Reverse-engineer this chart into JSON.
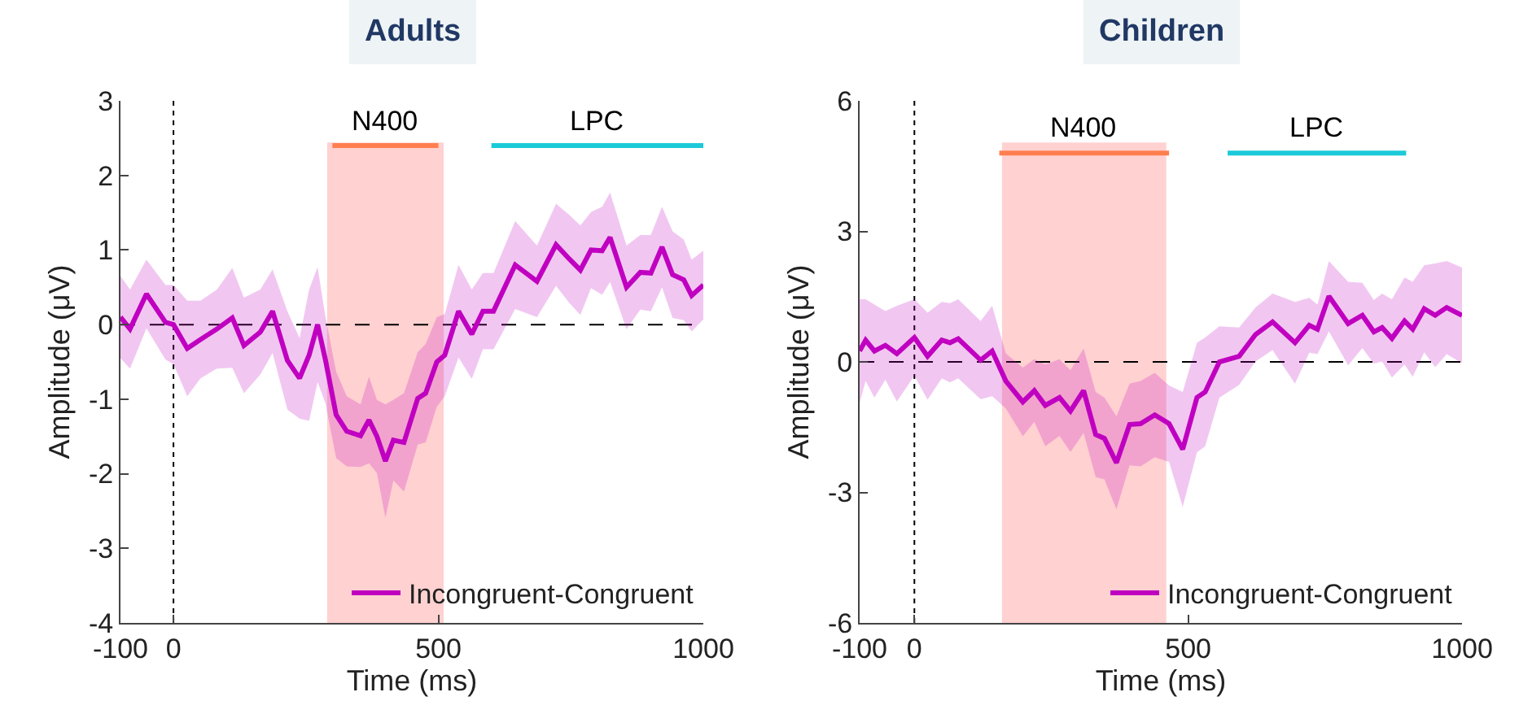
{
  "chart_data": [
    {
      "type": "line",
      "title": "Adults",
      "xlabel": "Time (ms)",
      "ylabel": "Amplitude (μV)",
      "xlim": [
        -100,
        1000
      ],
      "xticks": [
        -100,
        0,
        500,
        1000
      ],
      "ylim": [
        -4,
        3
      ],
      "yticks": [
        -4,
        -3,
        -2,
        -1,
        0,
        1,
        2,
        3
      ],
      "grid": false,
      "legend": "bottom right",
      "line_style": "solid",
      "marker": "none",
      "series": [
        {
          "name": "Incongruent-Congruent",
          "color": "#c000c0",
          "x": [
            -100,
            -82,
            -51,
            -15,
            0,
            26,
            51,
            82,
            111,
            133,
            164,
            187,
            215,
            238,
            256,
            272,
            287,
            307,
            327,
            353,
            369,
            384,
            400,
            415,
            435,
            461,
            476,
            497,
            512,
            538,
            563,
            584,
            604,
            645,
            686,
            722,
            747,
            768,
            788,
            809,
            824,
            855,
            881,
            901,
            922,
            942,
            963,
            978,
            1000
          ],
          "values": [
            0.1,
            -0.06,
            0.41,
            0.03,
            0,
            -0.32,
            -0.2,
            -0.06,
            0.09,
            -0.28,
            -0.1,
            0.18,
            -0.48,
            -0.72,
            -0.41,
            0,
            -0.48,
            -1.21,
            -1.43,
            -1.49,
            -1.28,
            -1.5,
            -1.83,
            -1.55,
            -1.58,
            -0.99,
            -0.92,
            -0.5,
            -0.41,
            0.18,
            -0.13,
            0.18,
            0.18,
            0.8,
            0.58,
            1.07,
            0.88,
            0.73,
            1,
            0.99,
            1.17,
            0.5,
            0.7,
            0.69,
            1.04,
            0.67,
            0.6,
            0.39,
            0.53
          ],
          "upper": [
            0.65,
            0.47,
            0.87,
            0.53,
            0.53,
            0.32,
            0.32,
            0.47,
            0.76,
            0.36,
            0.47,
            0.74,
            0.18,
            -0.18,
            0.47,
            0.77,
            0.1,
            -0.63,
            -0.96,
            -1.07,
            -0.7,
            -1.01,
            -1.07,
            -1.01,
            -0.92,
            -0.37,
            -0.26,
            0.1,
            0.14,
            0.8,
            0.47,
            0.69,
            0.69,
            1.39,
            1.06,
            1.62,
            1.47,
            1.33,
            1.51,
            1.58,
            1.77,
            1.06,
            1.2,
            1.2,
            1.58,
            1.25,
            1.14,
            0.87,
            0.99
          ],
          "lower": [
            -0.45,
            -0.59,
            -0.05,
            -0.47,
            -0.53,
            -0.96,
            -0.72,
            -0.59,
            -0.58,
            -0.92,
            -0.67,
            -0.38,
            -1.14,
            -1.26,
            -1.29,
            -0.77,
            -1.06,
            -1.79,
            -1.9,
            -1.91,
            -1.86,
            -1.99,
            -2.59,
            -2.09,
            -2.24,
            -1.61,
            -1.58,
            -1.1,
            -0.96,
            -0.44,
            -0.73,
            -0.33,
            -0.33,
            0.21,
            0.1,
            0.52,
            0.29,
            0.13,
            0.49,
            0.4,
            0.57,
            -0.06,
            0.2,
            0.18,
            0.5,
            0.09,
            0.06,
            -0.09,
            0.07
          ]
        },
        {
          "type": "line",
          "name": "N400",
          "color": "#ff7f50",
          "x": [
            300,
            500
          ],
          "values": [
            2.4,
            2.4
          ]
        },
        {
          "type": "line",
          "name": "LPC",
          "color": "#1ccad8",
          "x": [
            600,
            1000
          ],
          "values": [
            2.4,
            2.4
          ]
        }
      ],
      "bands": [
        {
          "axis": "x",
          "from": 290,
          "to": 510,
          "color": "#ffb3b3"
        }
      ],
      "ref_lines": [
        {
          "axis": "x",
          "value": 0,
          "line_style": "dotted",
          "color": "#000000"
        },
        {
          "axis": "y",
          "value": 0,
          "line_style": "dashed",
          "color": "#000000"
        }
      ]
    },
    {
      "type": "line",
      "title": "Children",
      "xlabel": "Time (ms)",
      "ylabel": "Amplitude (μV)",
      "xlim": [
        -100,
        1000
      ],
      "xticks": [
        -100,
        0,
        500,
        1000
      ],
      "ylim": [
        -6,
        6
      ],
      "yticks": [
        -6,
        -3,
        0,
        3,
        6
      ],
      "grid": false,
      "legend": "bottom right",
      "line_style": "solid",
      "marker": "none",
      "series": [
        {
          "name": "Incongruent-Congruent",
          "color": "#c000c0",
          "x": [
            -100,
            -89,
            -73,
            -53,
            -32,
            0,
            24,
            50,
            65,
            80,
            121,
            142,
            167,
            198,
            219,
            239,
            265,
            285,
            309,
            331,
            347,
            369,
            393,
            413,
            439,
            465,
            490,
            516,
            531,
            557,
            593,
            623,
            654,
            695,
            721,
            736,
            757,
            792,
            818,
            839,
            854,
            872,
            895,
            910,
            931,
            951,
            972,
            1000
          ],
          "values": [
            0.25,
            0.5,
            0.25,
            0.38,
            0.19,
            0.56,
            0.13,
            0.5,
            0.44,
            0.53,
            0.04,
            0.25,
            -0.44,
            -0.92,
            -0.66,
            -1,
            -0.82,
            -1.13,
            -0.66,
            -1.67,
            -1.76,
            -2.32,
            -1.44,
            -1.42,
            -1.22,
            -1.42,
            -2.01,
            -0.82,
            -0.69,
            0,
            0.13,
            0.63,
            0.92,
            0.44,
            0.84,
            0.75,
            1.51,
            0.88,
            1.07,
            0.69,
            0.79,
            0.54,
            0.94,
            0.75,
            1.22,
            1.07,
            1.25,
            1.07
          ],
          "upper": [
            1.44,
            1.44,
            1.32,
            1.17,
            1.29,
            1.44,
            1.13,
            1.38,
            1.35,
            1.44,
            0.94,
            1.29,
            0.19,
            -0.13,
            0.06,
            -0.06,
            0.06,
            -0.19,
            0.31,
            -0.69,
            -0.82,
            -1.25,
            -0.5,
            -0.44,
            -0.25,
            -0.54,
            -0.69,
            0.44,
            0.56,
            0.82,
            0.79,
            1.25,
            1.57,
            1.38,
            1.47,
            1.32,
            2.32,
            1.84,
            1.82,
            1.42,
            1.57,
            1.44,
            1.94,
            1.84,
            2.22,
            2.26,
            2.32,
            2.17
          ],
          "lower": [
            -0.94,
            -0.44,
            -0.82,
            -0.41,
            -0.91,
            -0.32,
            -0.87,
            -0.38,
            -0.47,
            -0.38,
            -0.86,
            -0.79,
            -1.07,
            -1.71,
            -1.38,
            -1.94,
            -1.7,
            -2.07,
            -1.63,
            -2.65,
            -2.7,
            -3.39,
            -2.38,
            -2.4,
            -2.19,
            -2.3,
            -3.33,
            -2.08,
            -1.94,
            -0.82,
            -0.53,
            0.01,
            0.27,
            -0.5,
            0.21,
            0.18,
            0.7,
            -0.08,
            0.32,
            -0.04,
            0.01,
            -0.36,
            -0.06,
            -0.34,
            0.22,
            -0.12,
            0.18,
            -0.03
          ]
        },
        {
          "type": "line",
          "name": "N400",
          "color": "#ff7f50",
          "x": [
            155,
            465
          ],
          "values": [
            4.8,
            4.8
          ]
        },
        {
          "type": "line",
          "name": "LPC",
          "color": "#1ccad8",
          "x": [
            572,
            898
          ],
          "values": [
            4.8,
            4.8
          ]
        }
      ],
      "bands": [
        {
          "axis": "x",
          "from": 160,
          "to": 460,
          "color": "#ffb3b3"
        }
      ],
      "ref_lines": [
        {
          "axis": "x",
          "value": 0,
          "line_style": "dotted",
          "color": "#000000"
        },
        {
          "axis": "y",
          "value": 0,
          "line_style": "dashed",
          "color": "#000000"
        }
      ]
    }
  ]
}
